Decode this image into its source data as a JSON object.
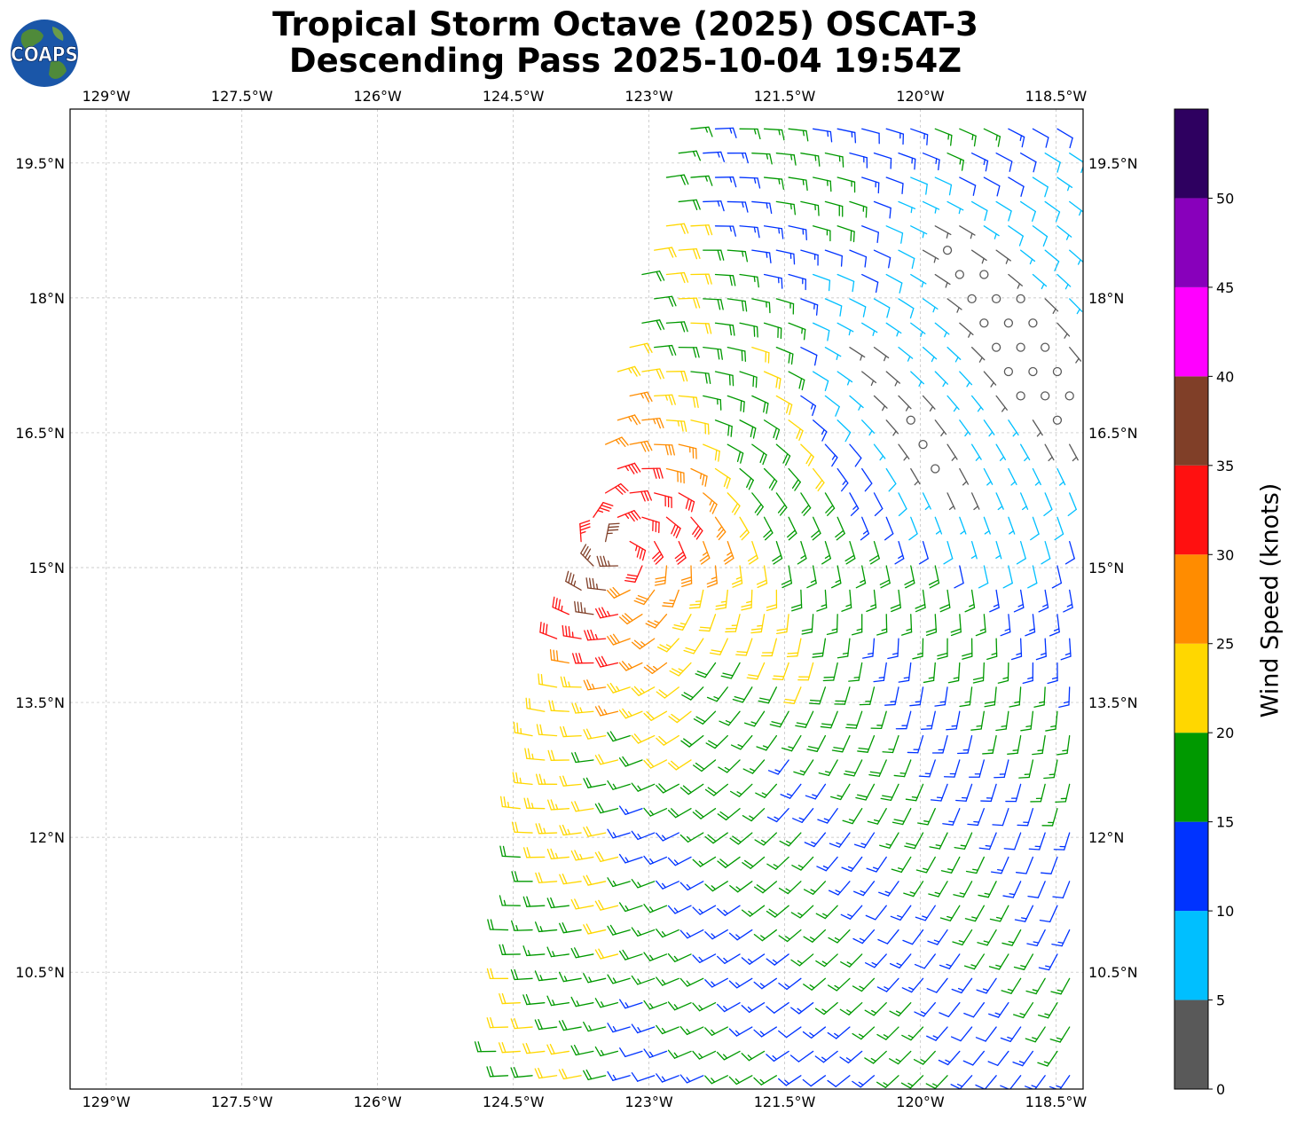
{
  "title": {
    "line1": "Tropical Storm Octave (2025) OSCAT-3",
    "line2": "Descending Pass 2025-10-04 19:54Z"
  },
  "logo": {
    "text": "COAPS",
    "icon": "globe-icon"
  },
  "map": {
    "lon_ticks": [
      "129°W",
      "127.5°W",
      "126°W",
      "124.5°W",
      "123°W",
      "121.5°W",
      "120°W",
      "118.5°W"
    ],
    "lat_ticks": [
      "19.5°N",
      "18°N",
      "16.5°N",
      "15°N",
      "13.5°N",
      "12°N",
      "10.5°N"
    ],
    "lon_values": [
      -129,
      -127.5,
      -126,
      -124.5,
      -123,
      -121.5,
      -120,
      -118.5
    ],
    "lat_values": [
      19.5,
      18,
      16.5,
      15,
      13.5,
      12,
      10.5
    ],
    "lon_range": [
      -129.4,
      -118.2
    ],
    "lat_range": [
      9.2,
      20.1
    ],
    "grid": true,
    "storm_center": {
      "lon": -123.3,
      "lat": 15.2
    },
    "swath_west_edge": [
      {
        "lat": 20.1,
        "lon": -122.7
      },
      {
        "lat": 16.5,
        "lon": -123.5
      },
      {
        "lat": 14.9,
        "lon": -123.9
      },
      {
        "lat": 13.0,
        "lon": -124.4
      },
      {
        "lat": 11.0,
        "lon": -124.6
      },
      {
        "lat": 9.2,
        "lon": -124.8
      }
    ]
  },
  "colorbar": {
    "label": "Wind Speed (knots)",
    "ticks": [
      "0",
      "5",
      "10",
      "15",
      "20",
      "25",
      "30",
      "35",
      "40",
      "45",
      "50"
    ],
    "bounds": [
      0,
      5,
      10,
      15,
      20,
      25,
      30,
      35,
      40,
      45,
      50,
      55
    ],
    "colors": [
      "#595959",
      "#00bfff",
      "#0033ff",
      "#009900",
      "#ffd700",
      "#ff8c00",
      "#ff1010",
      "#803f28",
      "#ff00ff",
      "#8800bb",
      "#2e0060"
    ]
  }
}
